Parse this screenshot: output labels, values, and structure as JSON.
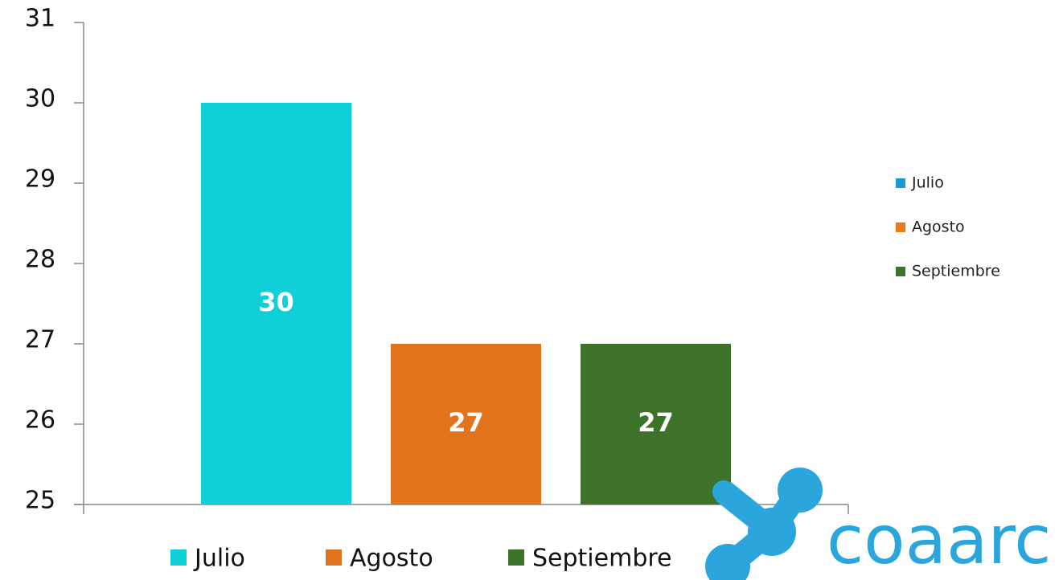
{
  "chart_data": {
    "type": "bar",
    "categories": [
      null
    ],
    "series": [
      {
        "name": "Julio",
        "color": "#0fd0d8",
        "values": [
          30
        ]
      },
      {
        "name": "Agosto",
        "color": "#e0731b",
        "values": [
          27
        ]
      },
      {
        "name": "Septiembre",
        "color": "#3d7229",
        "values": [
          27
        ]
      }
    ],
    "side_legend_colors": [
      "#1a9ad6",
      "#f07a1a",
      "#3d7229"
    ],
    "ylim": [
      25,
      31
    ],
    "yticks": [
      25,
      26,
      27,
      28,
      29,
      30,
      31
    ],
    "grid": false,
    "logo_text": "coaarc"
  }
}
